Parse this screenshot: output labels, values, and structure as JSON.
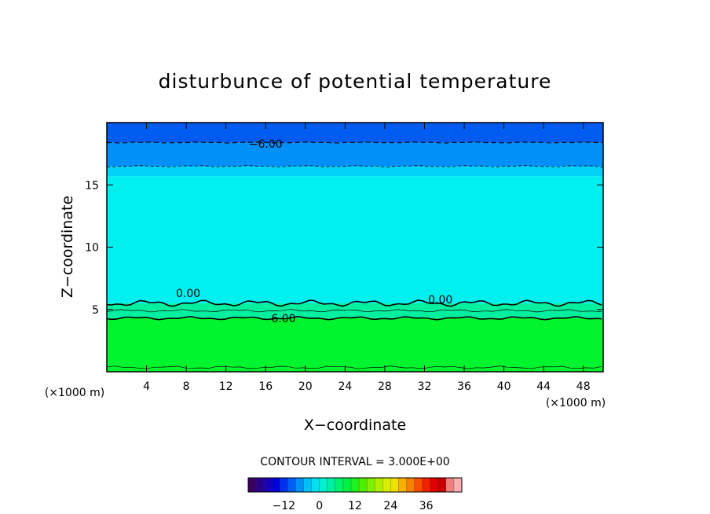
{
  "chart_data": {
    "type": "heatmap",
    "title": "disturbunce of potential temperature",
    "xlabel": "X−coordinate",
    "ylabel": "Z−coordinate",
    "x_unit": "(×1000 m)",
    "y_unit": "(×1000 m)",
    "xlim": [
      0,
      50
    ],
    "ylim": [
      0,
      20
    ],
    "x_ticks": [
      4,
      8,
      12,
      16,
      20,
      24,
      28,
      32,
      36,
      40,
      44,
      48
    ],
    "y_ticks": [
      5,
      10,
      15
    ],
    "x_tick_labels": [
      "4",
      "8",
      "12",
      "16",
      "20",
      "24",
      "28",
      "32",
      "36",
      "40",
      "44",
      "48"
    ],
    "y_tick_labels": [
      "5",
      "10",
      "15"
    ],
    "bands": [
      {
        "z_from": 0,
        "z_to": 4.3,
        "value": 3,
        "color": "#00f52e"
      },
      {
        "z_from": 4.3,
        "z_to": 5.5,
        "value": 0,
        "color": "#00f0a0"
      },
      {
        "z_from": 5.5,
        "z_to": 15.7,
        "value": -1.5,
        "color": "#00f0f0"
      },
      {
        "z_from": 15.7,
        "z_to": 16.5,
        "value": -3,
        "color": "#00d2f8"
      },
      {
        "z_from": 16.5,
        "z_to": 18.4,
        "value": -4.5,
        "color": "#0090f8"
      },
      {
        "z_from": 18.4,
        "z_to": 20,
        "value": -7.5,
        "color": "#005cf0"
      }
    ],
    "contour_labels": [
      {
        "text": "−6.00",
        "x": 16,
        "z": 18.3
      },
      {
        "text": "0.00",
        "x": 8.2,
        "z": 6.3
      },
      {
        "text": "0.00",
        "x": 33.6,
        "z": 5.8
      },
      {
        "text": "6.00",
        "x": 17.8,
        "z": 4.3
      }
    ],
    "contour_interval_label": "CONTOUR INTERVAL = 3.000E+00",
    "colorbar": {
      "range": [
        -24,
        48
      ],
      "ticks": [
        -12,
        0,
        12,
        24,
        36
      ],
      "tick_labels": [
        "−12",
        "0",
        "12",
        "24",
        "36"
      ],
      "colors": [
        "#3a0060",
        "#2a0088",
        "#1800b8",
        "#0000d8",
        "#0030f0",
        "#0060f8",
        "#0090f8",
        "#00c0f8",
        "#00e0f0",
        "#00f0d0",
        "#00f0a0",
        "#00f070",
        "#00f040",
        "#20f020",
        "#50f000",
        "#80f000",
        "#b0f000",
        "#d8f000",
        "#f0e000",
        "#f8b000",
        "#f88000",
        "#f85000",
        "#f02000",
        "#e00000",
        "#c80000",
        "#f08080",
        "#f8b0b0"
      ]
    }
  }
}
